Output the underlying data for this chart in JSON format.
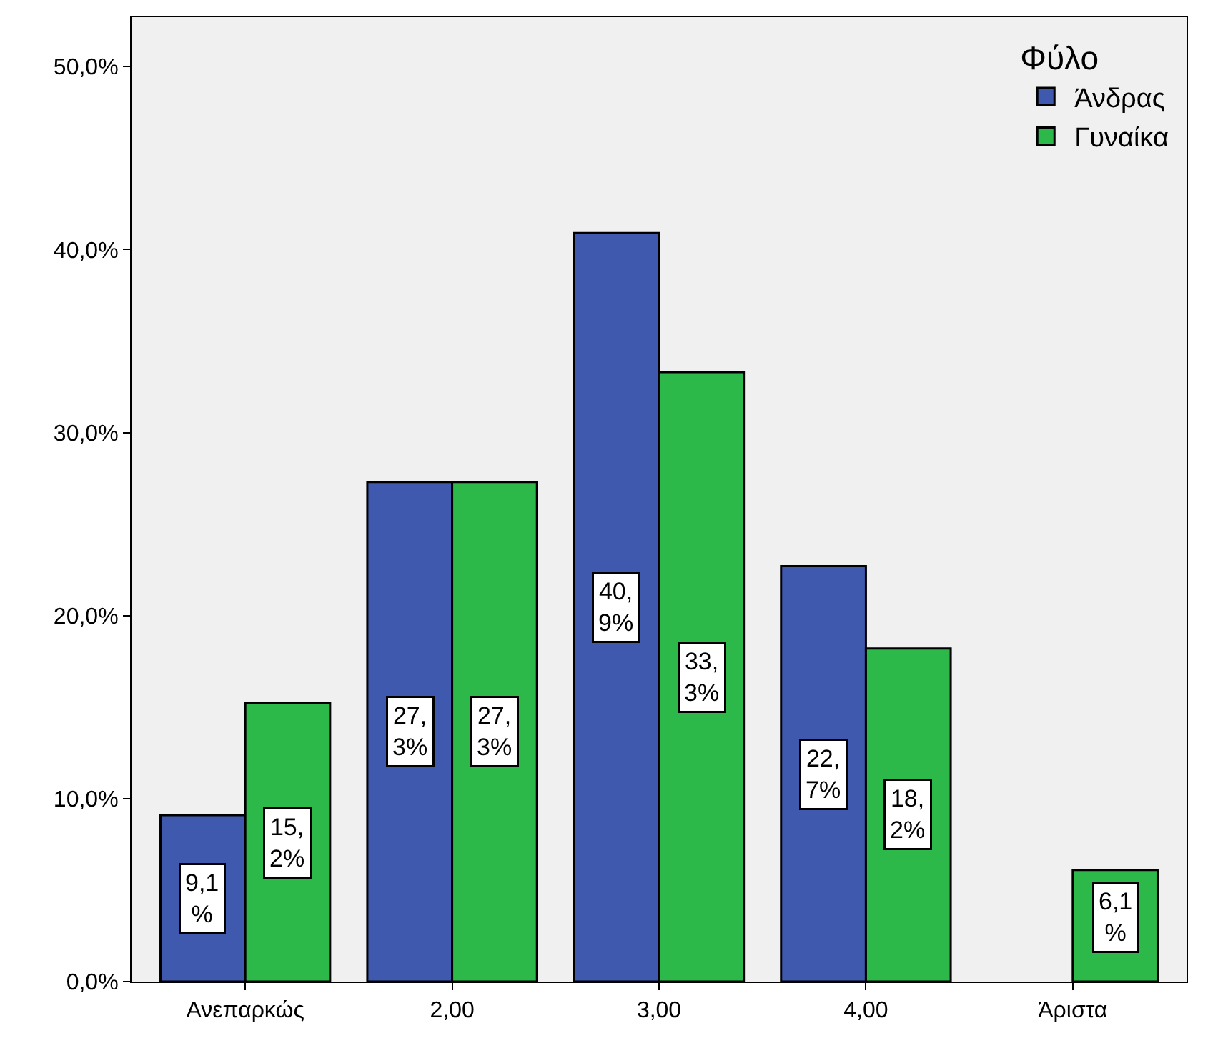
{
  "chart_data": {
    "type": "bar",
    "categories": [
      "Ανεπαρκώς",
      "2,00",
      "3,00",
      "4,00",
      "Άριστα"
    ],
    "legend_title": "Φύλο",
    "legend": "top right",
    "grid": false,
    "ylim": [
      0,
      52.7
    ],
    "yticks": [
      {
        "value": 0,
        "label": "0,0%"
      },
      {
        "value": 10,
        "label": "10,0%"
      },
      {
        "value": 20,
        "label": "20,0%"
      },
      {
        "value": 30,
        "label": "30,0%"
      },
      {
        "value": 40,
        "label": "40,0%"
      },
      {
        "value": 50,
        "label": "50,0%"
      }
    ],
    "series": [
      {
        "name": "Άνδρας",
        "color": "#3f59ae",
        "values": [
          9.1,
          27.3,
          40.9,
          22.7,
          0
        ],
        "value_labels": [
          "9,1%",
          "27,3%",
          "40,9%",
          "22,7%",
          null
        ]
      },
      {
        "name": "Γυναίκα",
        "color": "#2db84a",
        "values": [
          15.2,
          27.3,
          33.3,
          18.2,
          6.1
        ],
        "value_labels": [
          "15,2%",
          "27,3%",
          "33,3%",
          "18,2%",
          "6,1%"
        ]
      }
    ]
  }
}
